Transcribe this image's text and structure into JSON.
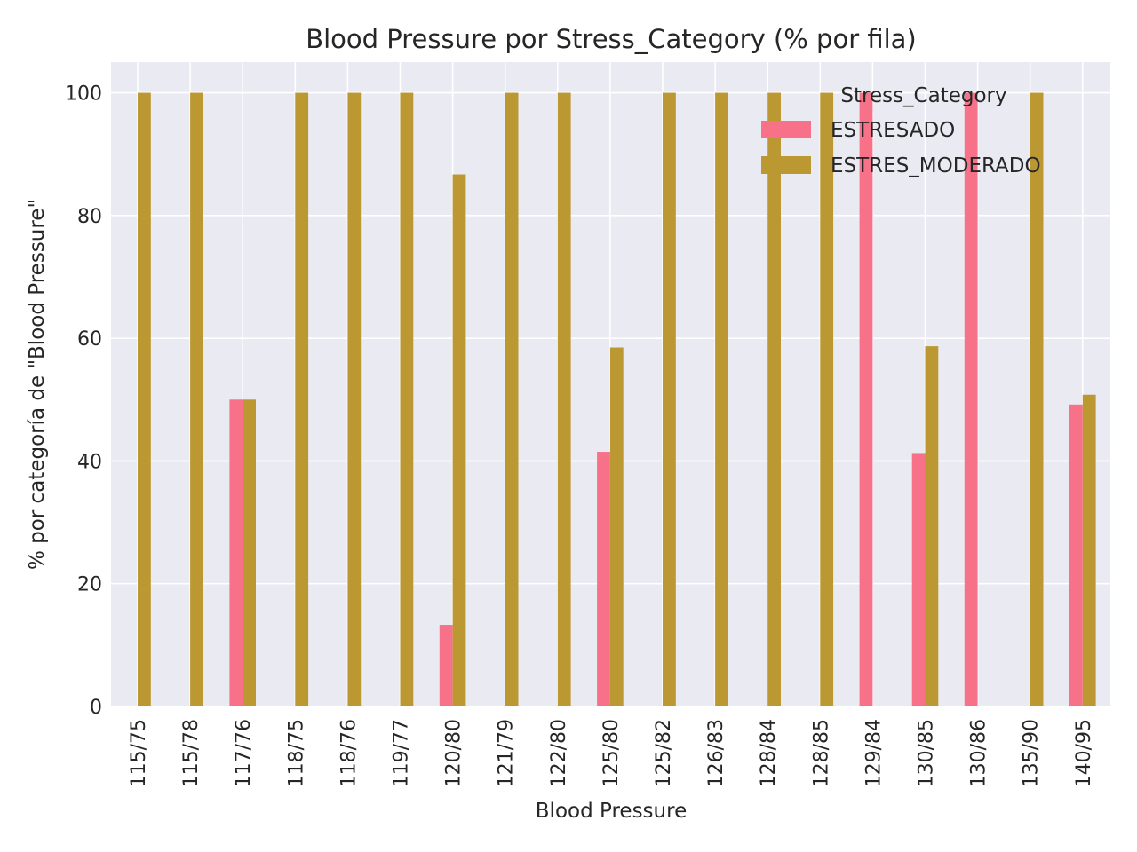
{
  "chart_data": {
    "type": "bar",
    "title": "Blood Pressure por Stress_Category (% por fila)",
    "xlabel": "Blood Pressure",
    "ylabel": "% por categoría de \"Blood Pressure\"",
    "ylim": [
      0,
      105
    ],
    "yticks": [
      0,
      20,
      40,
      60,
      80,
      100
    ],
    "grid": true,
    "legend": {
      "title": "Stress_Category",
      "placement": "top-right"
    },
    "categories": [
      "115/75",
      "115/78",
      "117/76",
      "118/75",
      "118/76",
      "119/77",
      "120/80",
      "121/79",
      "122/80",
      "125/80",
      "125/82",
      "126/83",
      "128/84",
      "128/85",
      "129/84",
      "130/85",
      "130/86",
      "135/90",
      "140/95"
    ],
    "series": [
      {
        "name": "ESTRESADO",
        "color": "#f77189",
        "values": [
          0,
          0,
          50,
          0,
          0,
          0,
          13.3,
          0,
          0,
          41.5,
          0,
          0,
          0,
          0,
          100,
          41.3,
          100,
          0,
          49.2
        ]
      },
      {
        "name": "ESTRES_MODERADO",
        "color": "#bb9832",
        "values": [
          100,
          100,
          50,
          100,
          100,
          100,
          86.7,
          100,
          100,
          58.5,
          100,
          100,
          100,
          100,
          0,
          58.7,
          0,
          100,
          50.8
        ]
      }
    ]
  }
}
